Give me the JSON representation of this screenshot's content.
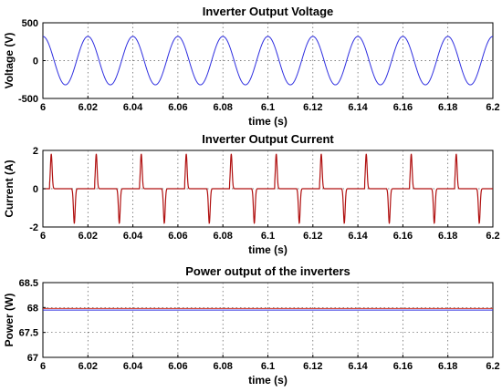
{
  "chart_data": [
    {
      "type": "line",
      "title": "Inverter Output Voltage",
      "xlabel": "time (s)",
      "ylabel": "Voltage (V)",
      "xlim": [
        6,
        6.2
      ],
      "ylim": [
        -500,
        500
      ],
      "xticks": [
        "6",
        "6.02",
        "6.04",
        "6.06",
        "6.08",
        "6.1",
        "6.12",
        "6.14",
        "6.16",
        "6.18",
        "6.2"
      ],
      "yticks": [
        "-500",
        "0",
        "500"
      ],
      "grid": true,
      "series": [
        {
          "color": "#2f2fe0",
          "shape": "sine",
          "amplitude": 320,
          "frequency_hz": 50,
          "phase_deg": 90
        }
      ]
    },
    {
      "type": "line",
      "title": "Inverter Output Current",
      "xlabel": "time (s)",
      "ylabel": "Current (A)",
      "xlim": [
        6,
        6.2
      ],
      "ylim": [
        -2,
        2
      ],
      "xticks": [
        "6",
        "6.02",
        "6.04",
        "6.06",
        "6.08",
        "6.1",
        "6.12",
        "6.14",
        "6.16",
        "6.18",
        "6.2"
      ],
      "yticks": [
        "-2",
        "0",
        "2"
      ],
      "grid": true,
      "series": [
        {
          "color": "#b01010",
          "shape": "pulse-train",
          "peak": 1.8,
          "frequency_hz": 50,
          "pulse_width_s": 0.0012,
          "positive_at_s": 6.003
        }
      ]
    },
    {
      "type": "line",
      "title": "Power output of the inverters",
      "xlabel": "time (s)",
      "ylabel": "Power (W)",
      "xlim": [
        6,
        6.2
      ],
      "ylim": [
        67,
        68.5
      ],
      "xticks": [
        "6",
        "6.02",
        "6.04",
        "6.06",
        "6.08",
        "6.1",
        "6.12",
        "6.14",
        "6.16",
        "6.18",
        "6.2"
      ],
      "yticks": [
        "67",
        "67.5",
        "68",
        "68.5"
      ],
      "grid": true,
      "series": [
        {
          "color": "#2f2fe0",
          "shape": "constant",
          "value": 67.95
        },
        {
          "color": "#d03020",
          "shape": "constant",
          "value": 67.98
        }
      ]
    }
  ]
}
